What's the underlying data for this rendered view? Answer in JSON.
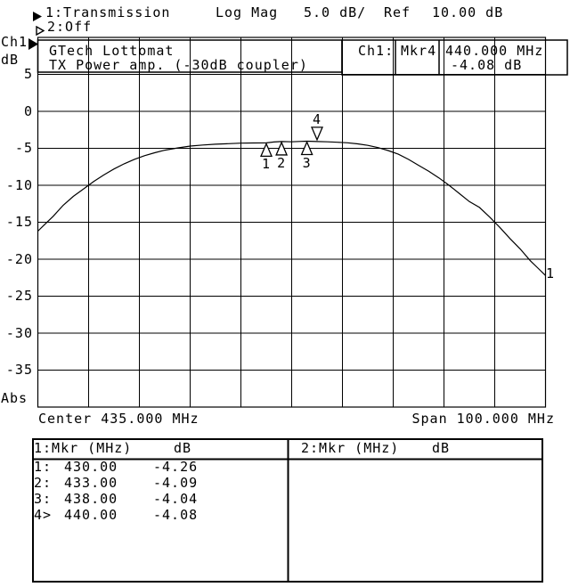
{
  "header": {
    "trace1_label": "1:Transmission",
    "trace2_label": "2:Off",
    "format": "Log Mag",
    "scale": "5.0 dB/",
    "ref_label": "Ref",
    "ref_value": "10.00 dB"
  },
  "left_axis": {
    "channel": "Ch1",
    "unit": "dB",
    "tick_labels": [
      "5",
      "0",
      "-5",
      "-10",
      "-15",
      "-20",
      "-25",
      "-30",
      "-35"
    ],
    "bottom_label": "Abs"
  },
  "plot": {
    "title_line1": "GTech Lottomat",
    "title_line2": "TX Power amp. (-30dB coupler)",
    "status_channel": "Ch1:",
    "status_marker": "Mkr4",
    "status_freq": "440.000 MHz",
    "status_value": "-4.08 dB",
    "trace_number": "1"
  },
  "x_axis": {
    "center": "Center 435.000 MHz",
    "span": "Span 100.000 MHz"
  },
  "marker_table": {
    "left": {
      "header": "1:Mkr (MHz)",
      "unit": "dB",
      "rows": [
        {
          "n": "1:",
          "freq": "430.00",
          "db": "-4.26"
        },
        {
          "n": "2:",
          "freq": "433.00",
          "db": "-4.09"
        },
        {
          "n": "3:",
          "freq": "438.00",
          "db": "-4.04"
        },
        {
          "n": "4>",
          "freq": "440.00",
          "db": "-4.08"
        }
      ]
    },
    "right": {
      "header": "2:Mkr (MHz)",
      "unit": "dB",
      "rows": []
    }
  },
  "icons": {
    "trace1_arrow": "filled-right-arrow",
    "trace2_arrow": "hollow-right-arrow",
    "ref_level_arrow": "filled-right-arrow"
  },
  "colors": {
    "foreground": "#000000",
    "background": "#ffffff"
  },
  "chart_data": {
    "type": "line",
    "title": "GTech Lottomat TX Power amp. (-30dB coupler)",
    "x_center_mhz": 435,
    "x_span_mhz": 100,
    "x_range_mhz": [
      385,
      485
    ],
    "y_unit": "dB",
    "y_ref_db": 10,
    "y_scale_db_per_div": 5,
    "y_range_db": [
      -40,
      10
    ],
    "grid": "10x10 on",
    "legend_position": "none",
    "series": [
      {
        "name": "1:Transmission Log Mag",
        "x_mhz": [
          385,
          386.5,
          388,
          390,
          392,
          394,
          396,
          398,
          400,
          402,
          404,
          406,
          408,
          410,
          412.5,
          415,
          417.5,
          420,
          422.5,
          425,
          427.5,
          430,
          431.5,
          433,
          435,
          436.5,
          438,
          440,
          442,
          444,
          446,
          448,
          450,
          452,
          454,
          456,
          458,
          460,
          462,
          464,
          466,
          468,
          470,
          472,
          474,
          476,
          478,
          480,
          482,
          483.5,
          485
        ],
        "y_db": [
          -16.2,
          -15.2,
          -14.2,
          -12.7,
          -11.5,
          -10.5,
          -9.5,
          -8.6,
          -7.8,
          -7.1,
          -6.5,
          -6.0,
          -5.6,
          -5.25,
          -4.95,
          -4.7,
          -4.55,
          -4.45,
          -4.37,
          -4.3,
          -4.28,
          -4.26,
          -4.15,
          -4.09,
          -4.12,
          -4.07,
          -4.04,
          -4.08,
          -4.12,
          -4.18,
          -4.25,
          -4.4,
          -4.6,
          -4.9,
          -5.3,
          -5.8,
          -6.5,
          -7.3,
          -8.1,
          -9.0,
          -10.0,
          -11.1,
          -12.2,
          -13.0,
          -14.3,
          -15.7,
          -17.2,
          -18.6,
          -20.2,
          -21.2,
          -22.2
        ]
      }
    ],
    "markers": [
      {
        "number": "1",
        "freq_mhz": 430,
        "db": -4.26,
        "active": false
      },
      {
        "number": "2",
        "freq_mhz": 433,
        "db": -4.09,
        "active": false
      },
      {
        "number": "3",
        "freq_mhz": 438,
        "db": -4.04,
        "active": false
      },
      {
        "number": "4",
        "freq_mhz": 440,
        "db": -4.08,
        "active": true
      }
    ]
  }
}
